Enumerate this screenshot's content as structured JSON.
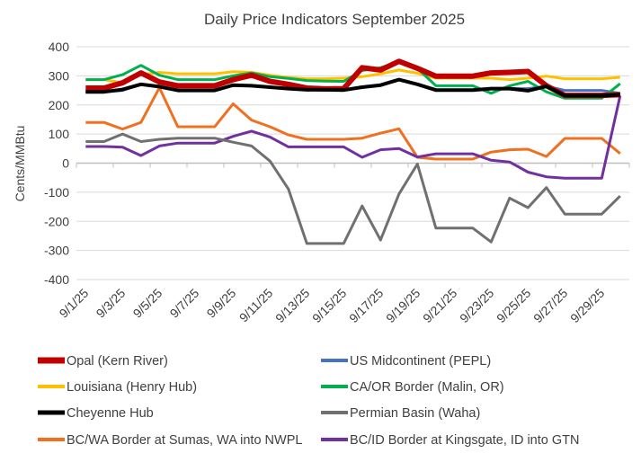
{
  "chart_data": {
    "type": "line",
    "title": "Daily Price Indicators September 2025",
    "xlabel": "",
    "ylabel": "Cents/MMBtu",
    "ylim": [
      -400,
      400
    ],
    "yticks": [
      400,
      300,
      200,
      100,
      0,
      -100,
      -200,
      -300,
      -400
    ],
    "grid": true,
    "legend_position": "bottom",
    "categories": [
      "9/1/25",
      "9/2/25",
      "9/3/25",
      "9/4/25",
      "9/5/25",
      "9/6/25",
      "9/7/25",
      "9/8/25",
      "9/9/25",
      "9/10/25",
      "9/11/25",
      "9/12/25",
      "9/13/25",
      "9/14/25",
      "9/15/25",
      "9/16/25",
      "9/17/25",
      "9/18/25",
      "9/19/25",
      "9/20/25",
      "9/21/25",
      "9/22/25",
      "9/23/25",
      "9/24/25",
      "9/25/25",
      "9/26/25",
      "9/27/25",
      "9/28/25",
      "9/29/25",
      "9/30/25"
    ],
    "xtick_labels": [
      "9/1/25",
      "9/3/25",
      "9/5/25",
      "9/7/25",
      "9/9/25",
      "9/11/25",
      "9/13/25",
      "9/15/25",
      "9/17/25",
      "9/19/25",
      "9/21/25",
      "9/23/25",
      "9/25/25",
      "9/27/25",
      "9/29/25"
    ],
    "series": [
      {
        "name": "Opal (Kern River)",
        "color": "#C00000",
        "width": 6,
        "values": [
          258,
          258,
          276,
          310,
          279,
          266,
          266,
          266,
          287,
          302,
          281,
          271,
          258,
          255,
          256,
          328,
          320,
          350,
          326,
          299,
          299,
          299,
          310,
          312,
          315,
          266,
          233,
          233,
          233,
          235
        ]
      },
      {
        "name": "US Midcontinent (PEPL)",
        "color": "#4472C4",
        "width": 3,
        "values": [
          245,
          245,
          250,
          271,
          263,
          250,
          250,
          250,
          268,
          266,
          261,
          256,
          252,
          252,
          251,
          261,
          268,
          287,
          271,
          251,
          251,
          251,
          256,
          256,
          256,
          264,
          250,
          250,
          250,
          240
        ]
      },
      {
        "name": "Louisiana (Henry Hub)",
        "color": "#FFC000",
        "width": 3,
        "values": [
          287,
          287,
          276,
          304,
          312,
          307,
          307,
          307,
          314,
          312,
          302,
          294,
          290,
          290,
          292,
          297,
          307,
          320,
          309,
          292,
          292,
          292,
          292,
          287,
          292,
          299,
          290,
          290,
          290,
          295
        ]
      },
      {
        "name": "CA/OR Border (Malin, OR)",
        "color": "#00B050",
        "width": 3,
        "values": [
          287,
          287,
          304,
          336,
          302,
          287,
          287,
          287,
          300,
          310,
          297,
          291,
          284,
          282,
          281,
          318,
          328,
          348,
          326,
          266,
          266,
          266,
          240,
          266,
          281,
          245,
          223,
          223,
          223,
          273
        ]
      },
      {
        "name": "Cheyenne Hub",
        "color": "#000000",
        "width": 4,
        "values": [
          245,
          245,
          253,
          271,
          263,
          250,
          250,
          250,
          268,
          266,
          261,
          256,
          252,
          252,
          251,
          261,
          268,
          287,
          271,
          251,
          251,
          251,
          256,
          256,
          249,
          264,
          232,
          232,
          232,
          235
        ]
      },
      {
        "name": "Permian Basin (Waha)",
        "color": "#707070",
        "width": 3,
        "values": [
          74,
          74,
          100,
          74,
          82,
          86,
          86,
          86,
          72,
          59,
          7,
          -89,
          -276,
          -276,
          -276,
          -147,
          -264,
          -106,
          -3,
          -223,
          -223,
          -223,
          -271,
          -120,
          -153,
          -84,
          -175,
          -175,
          -175,
          -113
        ]
      },
      {
        "name": "BC/WA Border at Sumas, WA into NWPL",
        "color": "#F07020",
        "width": 3,
        "values": [
          140,
          140,
          117,
          140,
          259,
          125,
          125,
          125,
          204,
          148,
          125,
          97,
          82,
          82,
          82,
          86,
          103,
          118,
          20,
          14,
          14,
          14,
          38,
          46,
          48,
          23,
          85,
          85,
          85,
          33
        ]
      },
      {
        "name": "BC/ID Border at Kingsgate, ID into GTN",
        "color": "#7030A0",
        "width": 3,
        "values": [
          57,
          57,
          55,
          26,
          59,
          69,
          69,
          69,
          92,
          110,
          90,
          56,
          56,
          56,
          56,
          20,
          46,
          50,
          21,
          32,
          32,
          32,
          10,
          4,
          -31,
          -47,
          -52,
          -52,
          -52,
          232
        ]
      }
    ]
  }
}
